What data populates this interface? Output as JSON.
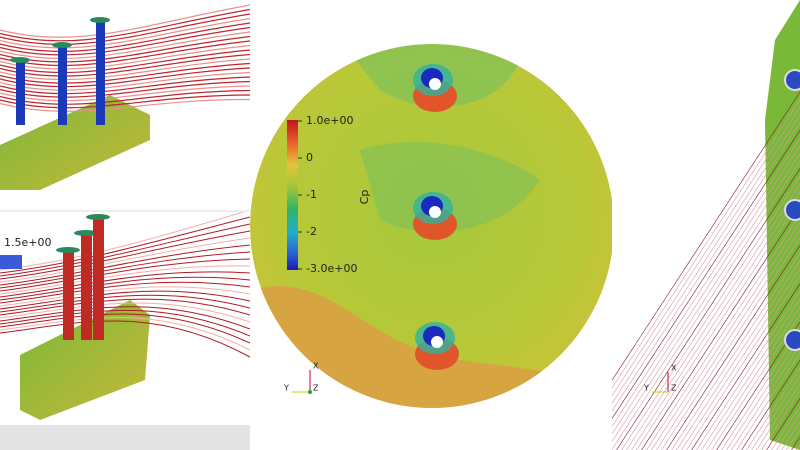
{
  "left_panel": {
    "colorbar_label": "1.5e+00"
  },
  "center_panel": {
    "colorbar": {
      "title": "Cp",
      "labels": [
        "1.0e+00",
        "0",
        "-1",
        "-2",
        "-3.0e+00"
      ]
    },
    "axes_triad": {
      "x": "X",
      "y": "Y",
      "z": "Z"
    }
  },
  "right_panel": {
    "axes_triad": {
      "x": "X",
      "y": "Y",
      "z": "Z"
    }
  }
}
